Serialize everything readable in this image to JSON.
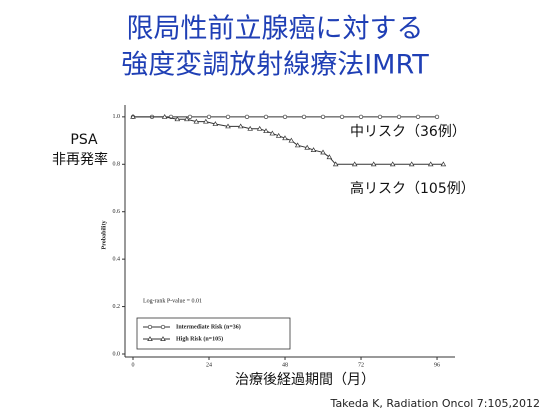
{
  "slide": {
    "title_line1": "限局性前立腺癌に対する",
    "title_line2": "強度変調放射線療法IMRT",
    "y_label_line1": "PSA",
    "y_label_line2": "非再発率",
    "label_intermediate": "中リスク（36例）",
    "label_high": "高リスク（105例）",
    "citation": "Takeda K, Radiation Oncol 7:105,2012"
  },
  "chart_data": {
    "type": "line",
    "x_label": "治療後経過期間（月）",
    "y_label": "Probability",
    "annotation": "Log-rank P-value = 0.01",
    "xlim": [
      0,
      100
    ],
    "xticks": [
      0,
      24,
      48,
      72,
      96
    ],
    "ylim": [
      0,
      1.05
    ],
    "yticks": [
      {
        "value": 0,
        "label": "0.0"
      },
      {
        "value": 0.2,
        "label": "0.2"
      },
      {
        "value": 0.4,
        "label": "0.4"
      },
      {
        "value": 0.6,
        "label": "0.6"
      },
      {
        "value": 0.8,
        "label": "0.8"
      },
      {
        "value": 1,
        "label": "1.0"
      }
    ],
    "series": [
      {
        "name": "Intermediate Risk (n=36)",
        "color": "#333333",
        "marker": "circle",
        "x": [
          0,
          6,
          12,
          18,
          24,
          30,
          36,
          42,
          48,
          54,
          60,
          66,
          72,
          78,
          84,
          90,
          96
        ],
        "values": [
          1,
          1,
          1,
          1,
          1,
          1,
          1,
          1,
          1,
          1,
          1,
          1,
          1,
          1,
          1,
          1,
          1
        ]
      },
      {
        "name": "High Risk (n=105)",
        "color": "#333333",
        "marker": "triangle",
        "x": [
          0,
          10,
          14,
          17,
          20,
          23,
          26,
          30,
          34,
          37,
          40,
          42,
          44,
          46,
          48,
          50,
          52,
          55,
          57,
          60,
          62,
          64,
          70,
          76,
          82,
          88,
          94,
          98
        ],
        "values": [
          1,
          1,
          0.99,
          0.99,
          0.98,
          0.98,
          0.97,
          0.96,
          0.96,
          0.95,
          0.95,
          0.94,
          0.93,
          0.92,
          0.91,
          0.9,
          0.88,
          0.87,
          0.86,
          0.85,
          0.83,
          0.8,
          0.8,
          0.8,
          0.8,
          0.8,
          0.8,
          0.8
        ]
      }
    ]
  }
}
